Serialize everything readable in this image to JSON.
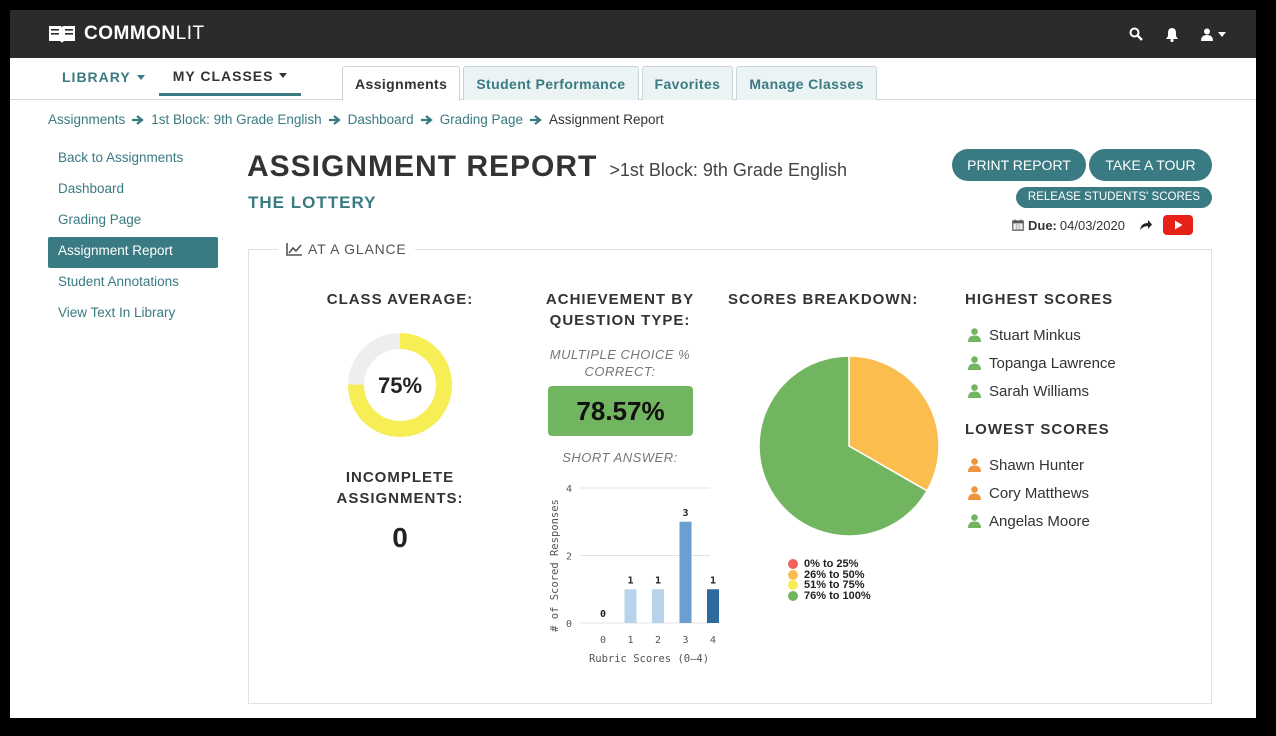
{
  "app": {
    "brand_strong": "COMMON",
    "brand_light": "LIT",
    "icons": [
      "search-icon",
      "bell-icon",
      "user-icon"
    ]
  },
  "nav": {
    "library": "LIBRARY",
    "my_classes": "MY CLASSES",
    "tabs": [
      {
        "label": "Assignments",
        "active": true
      },
      {
        "label": "Student Performance",
        "active": false
      },
      {
        "label": "Favorites",
        "active": false
      },
      {
        "label": "Manage Classes",
        "active": false
      }
    ]
  },
  "breadcrumb": [
    "Assignments",
    "1st Block: 9th Grade English",
    "Dashboard",
    "Grading Page",
    "Assignment Report"
  ],
  "sidebar": {
    "items": [
      {
        "label": "Back to Assignments",
        "active": false
      },
      {
        "label": "Dashboard",
        "active": false
      },
      {
        "label": "Grading Page",
        "active": false
      },
      {
        "label": "Assignment Report",
        "active": true
      },
      {
        "label": "Student Annotations",
        "active": false
      },
      {
        "label": "View Text In Library",
        "active": false
      }
    ]
  },
  "header": {
    "title": "ASSIGNMENT REPORT",
    "subtitle": ">1st Block: 9th Grade English",
    "text_title": "THE LOTTERY",
    "print_report": "PRINT REPORT",
    "take_tour": "TAKE A TOUR",
    "release_scores": "RELEASE STUDENTS' SCORES",
    "due_label": "Due:",
    "due_date": "04/03/2020"
  },
  "glance": {
    "legend": "AT A GLANCE",
    "class_average_label": "CLASS AVERAGE:",
    "class_average_value": "75%",
    "class_average_fraction": 0.75,
    "incomplete_label": "INCOMPLETE ASSIGNMENTS:",
    "incomplete_value": "0",
    "achievement_label": "ACHIEVEMENT BY QUESTION TYPE:",
    "mc_label": "MULTIPLE CHOICE % CORRECT:",
    "mc_value": "78.57%",
    "short_answer_label": "SHORT ANSWER:",
    "scores_breakdown_label": "SCORES BREAKDOWN:",
    "highest_label": "HIGHEST SCORES",
    "lowest_label": "LOWEST SCORES",
    "highest": [
      {
        "name": "Stuart Minkus",
        "color": "#72b561"
      },
      {
        "name": "Topanga Lawrence",
        "color": "#72b561"
      },
      {
        "name": "Sarah Williams",
        "color": "#72b561"
      }
    ],
    "lowest": [
      {
        "name": "Shawn Hunter",
        "color": "#f0953f"
      },
      {
        "name": "Cory Matthews",
        "color": "#f0953f"
      },
      {
        "name": "Angelas Moore",
        "color": "#72b561"
      }
    ]
  },
  "colors": {
    "accent": "#3a7a82",
    "donut_fill": "#f7ee55",
    "donut_track": "#eeeeee",
    "youtube": "#e62117"
  },
  "chart_data": [
    {
      "type": "bar",
      "categories": [
        "0",
        "1",
        "2",
        "3",
        "4"
      ],
      "values": [
        0,
        1,
        1,
        3,
        1
      ],
      "data_labels": [
        "0",
        "1",
        "1",
        "3",
        "1"
      ],
      "colors": [
        "#b8d4ec",
        "#b8d4ec",
        "#b8d4ec",
        "#6a9fd0",
        "#2f6a9f"
      ],
      "xlabel": "Rubric Scores (0–4)",
      "ylabel": "# of Scored Responses",
      "ylim": [
        0,
        4
      ],
      "yticks": [
        "0",
        "2",
        "4"
      ],
      "grid": true
    },
    {
      "type": "pie",
      "labels": [
        "0% to 25%",
        "26% to 50%",
        "51% to 75%",
        "76% to 100%"
      ],
      "values": [
        0,
        33.3,
        0,
        66.7
      ],
      "colors": [
        "#f0625a",
        "#fbbd4d",
        "#f7ee55",
        "#72b561"
      ],
      "legend": "bottom"
    }
  ]
}
